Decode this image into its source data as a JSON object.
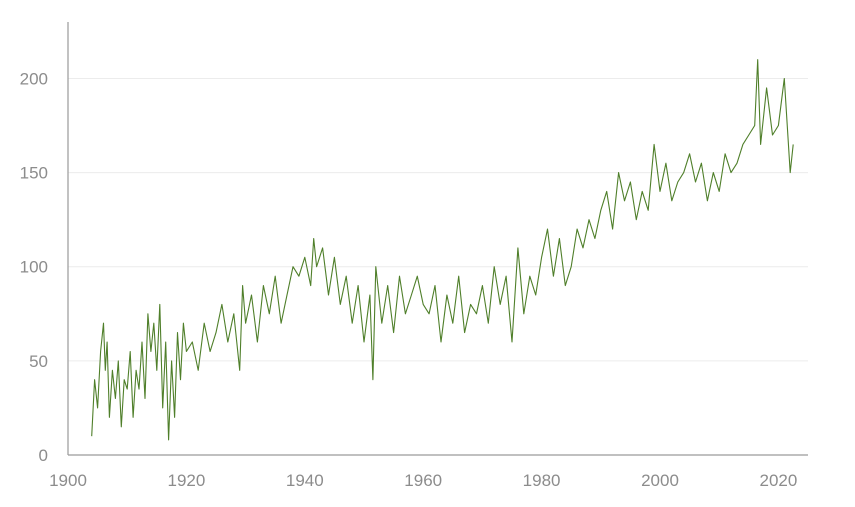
{
  "chart_data": {
    "type": "line",
    "title": "",
    "xlabel": "",
    "ylabel": "",
    "xlim": [
      1900,
      2025
    ],
    "ylim": [
      0,
      230
    ],
    "x_ticks": [
      1900,
      1920,
      1940,
      1960,
      1980,
      2000,
      2020
    ],
    "y_ticks": [
      0,
      50,
      100,
      150,
      200
    ],
    "x_tick_labels": [
      "1900",
      "1920",
      "1940",
      "1960",
      "1980",
      "2000",
      "2020"
    ],
    "y_tick_labels": [
      "0",
      "50",
      "100",
      "150",
      "200"
    ],
    "grid": "horizontal",
    "legend": "none",
    "colors": {
      "series": "#4f7f2a",
      "axis": "#9a9a9a",
      "grid": "#ececec",
      "tick_text": "#8c8c8c"
    },
    "series": [
      {
        "x": [
          1904.0,
          1904.5,
          1905.0,
          1905.5,
          1906.0,
          1906.3,
          1906.6,
          1907.0,
          1907.5,
          1908.0,
          1908.5,
          1909.0,
          1909.5,
          1910.0,
          1910.5,
          1911.0,
          1911.5,
          1912.0,
          1912.5,
          1913.0,
          1913.5,
          1914.0,
          1914.5,
          1915.0,
          1915.5,
          1916.0,
          1916.5,
          1917.0,
          1917.5,
          1918.0,
          1918.5,
          1919.0,
          1919.5,
          1920.0,
          1921.0,
          1922.0,
          1923.0,
          1924.0,
          1925.0,
          1926.0,
          1927.0,
          1928.0,
          1929.0,
          1929.5,
          1930.0,
          1931.0,
          1932.0,
          1933.0,
          1934.0,
          1935.0,
          1936.0,
          1937.0,
          1938.0,
          1939.0,
          1940.0,
          1941.0,
          1941.5,
          1942.0,
          1943.0,
          1944.0,
          1945.0,
          1946.0,
          1947.0,
          1948.0,
          1949.0,
          1950.0,
          1951.0,
          1951.5,
          1952.0,
          1953.0,
          1954.0,
          1955.0,
          1956.0,
          1957.0,
          1958.0,
          1959.0,
          1960.0,
          1961.0,
          1962.0,
          1963.0,
          1964.0,
          1965.0,
          1966.0,
          1967.0,
          1968.0,
          1969.0,
          1970.0,
          1971.0,
          1972.0,
          1973.0,
          1974.0,
          1975.0,
          1976.0,
          1977.0,
          1978.0,
          1979.0,
          1980.0,
          1981.0,
          1982.0,
          1983.0,
          1984.0,
          1985.0,
          1986.0,
          1987.0,
          1988.0,
          1989.0,
          1990.0,
          1991.0,
          1992.0,
          1993.0,
          1994.0,
          1995.0,
          1996.0,
          1997.0,
          1998.0,
          1999.0,
          2000.0,
          2001.0,
          2002.0,
          2003.0,
          2004.0,
          2005.0,
          2006.0,
          2007.0,
          2008.0,
          2009.0,
          2010.0,
          2011.0,
          2012.0,
          2013.0,
          2014.0,
          2015.0,
          2016.0,
          2016.5,
          2017.0,
          2018.0,
          2019.0,
          2020.0,
          2021.0,
          2022.0,
          2022.5
        ],
        "y": [
          10,
          40,
          25,
          55,
          70,
          45,
          60,
          20,
          45,
          30,
          50,
          15,
          40,
          35,
          55,
          20,
          45,
          35,
          60,
          30,
          75,
          55,
          70,
          45,
          80,
          25,
          60,
          8,
          50,
          20,
          65,
          40,
          70,
          55,
          60,
          45,
          70,
          55,
          65,
          80,
          60,
          75,
          45,
          90,
          70,
          85,
          60,
          90,
          75,
          95,
          70,
          85,
          100,
          95,
          105,
          90,
          115,
          100,
          110,
          85,
          105,
          80,
          95,
          70,
          90,
          60,
          85,
          40,
          100,
          70,
          90,
          65,
          95,
          75,
          85,
          95,
          80,
          75,
          90,
          60,
          85,
          70,
          95,
          65,
          80,
          75,
          90,
          70,
          100,
          80,
          95,
          60,
          110,
          75,
          95,
          85,
          105,
          120,
          95,
          115,
          90,
          100,
          120,
          110,
          125,
          115,
          130,
          140,
          120,
          150,
          135,
          145,
          125,
          140,
          130,
          165,
          140,
          155,
          135,
          145,
          150,
          160,
          145,
          155,
          135,
          150,
          140,
          160,
          150,
          155,
          165,
          170,
          175,
          210,
          165,
          195,
          170,
          175,
          200,
          150,
          165
        ]
      }
    ]
  }
}
